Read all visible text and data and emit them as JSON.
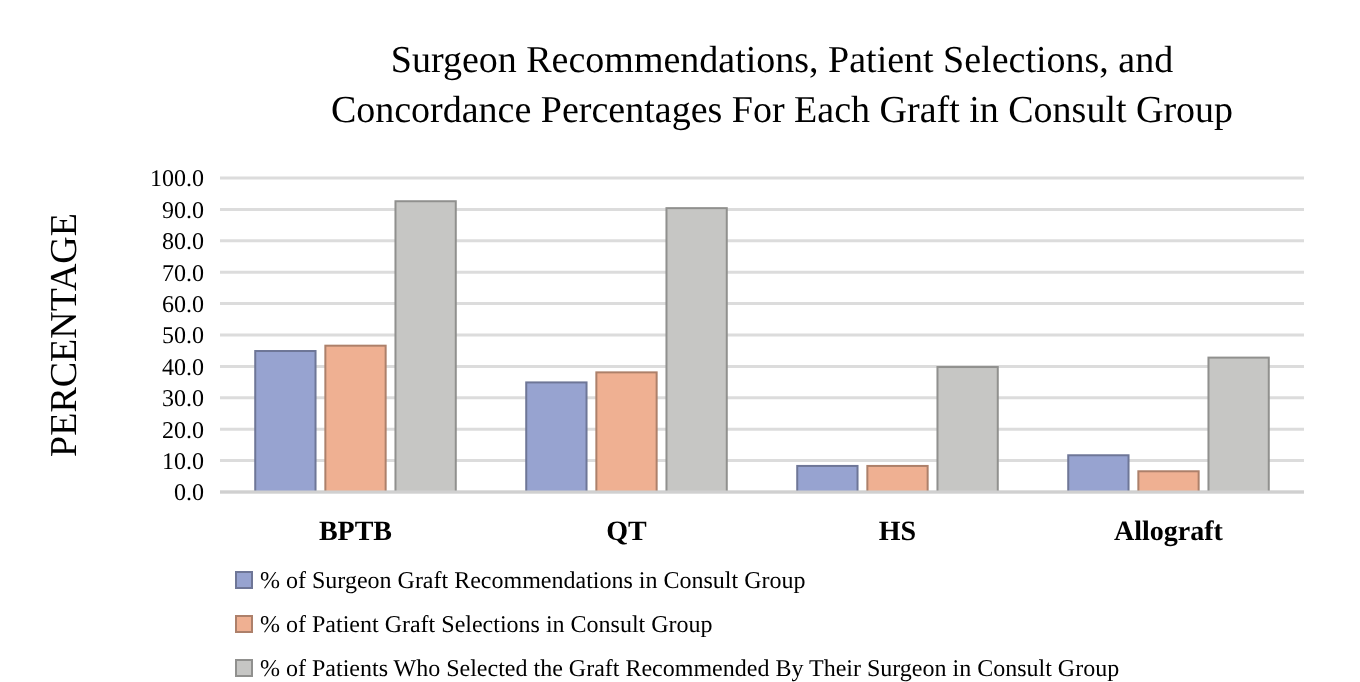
{
  "chart_data": {
    "type": "bar",
    "title": "Surgeon Recommendations, Patient Selections, and\nConcordance Percentages For Each Graft in Consult Group",
    "ylabel": "PERCENTAGE",
    "categories": [
      "BPTB",
      "QT",
      "HS",
      "Allograft"
    ],
    "series": [
      {
        "name": "% of Surgeon Graft Recommendations in Consult Group",
        "color": "#97a3d0",
        "values": [
          44.9,
          34.9,
          8.3,
          11.7
        ]
      },
      {
        "name": "% of Patient Graft Selections in Consult Group",
        "color": "#efb092",
        "values": [
          46.6,
          38.1,
          8.3,
          6.6
        ]
      },
      {
        "name": "% of Patients Who Selected the Graft Recommended By Their Surgeon in Consult Group",
        "color": "#c6c6c4",
        "values": [
          92.6,
          90.4,
          39.8,
          42.8
        ]
      }
    ],
    "ylim": [
      0,
      100
    ],
    "yticks": [
      {
        "value": 0,
        "label": "0.0"
      },
      {
        "value": 10,
        "label": "10.0"
      },
      {
        "value": 20,
        "label": "20.0"
      },
      {
        "value": 30,
        "label": "30.0"
      },
      {
        "value": 40,
        "label": "40.0"
      },
      {
        "value": 50,
        "label": "50.0"
      },
      {
        "value": 60,
        "label": "60.0"
      },
      {
        "value": 70,
        "label": "70.0"
      },
      {
        "value": 80,
        "label": "80.0"
      },
      {
        "value": 90,
        "label": "90.0"
      },
      {
        "value": 100,
        "label": "100.0"
      }
    ],
    "grid": "y",
    "legend": "bottom"
  }
}
